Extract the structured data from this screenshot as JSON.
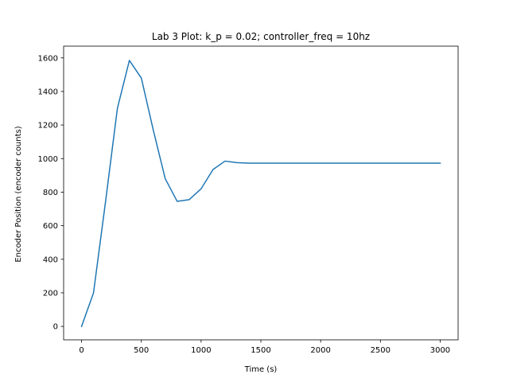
{
  "chart_data": {
    "type": "line",
    "title": "Lab 3 Plot: k_p = 0.02; controller_freq = 10hz",
    "xlabel": "Time (s)",
    "ylabel": "Encoder Position (encoder counts)",
    "xlim": [
      -150,
      3150
    ],
    "ylim": [
      -80,
      1670
    ],
    "xticks": [
      0,
      500,
      1000,
      1500,
      2000,
      2500,
      3000
    ],
    "yticks": [
      0,
      200,
      400,
      600,
      800,
      1000,
      1200,
      1400,
      1600
    ],
    "grid": false,
    "series": [
      {
        "name": "Encoder Position",
        "color": "#1f77b4",
        "x": [
          0,
          100,
          200,
          300,
          400,
          500,
          600,
          700,
          800,
          900,
          1000,
          1100,
          1200,
          1300,
          1400,
          1500,
          1600,
          1700,
          1800,
          1900,
          2000,
          2100,
          2200,
          2300,
          2400,
          2500,
          2600,
          2700,
          2800,
          2900,
          3000
        ],
        "y": [
          0,
          200,
          740,
          1300,
          1585,
          1480,
          1170,
          880,
          745,
          755,
          820,
          935,
          985,
          976,
          973,
          973,
          973,
          973,
          973,
          973,
          973,
          973,
          973,
          973,
          973,
          973,
          973,
          973,
          973,
          973,
          973
        ]
      }
    ]
  }
}
